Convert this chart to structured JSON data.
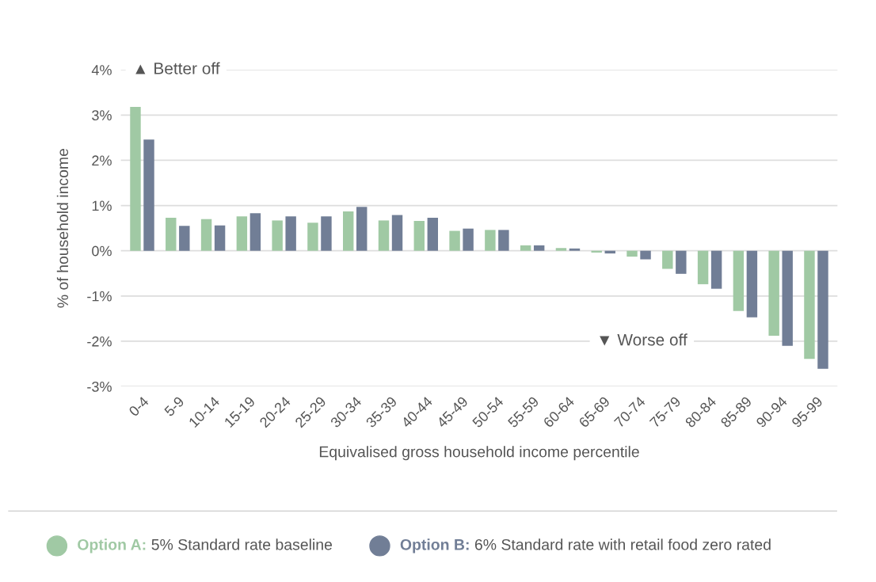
{
  "chart_data": {
    "type": "bar",
    "xlabel": "Equivalised gross household income percentile",
    "ylabel": "% of household income",
    "categories": [
      "0-4",
      "5-9",
      "10-14",
      "15-19",
      "20-24",
      "25-29",
      "30-34",
      "35-39",
      "40-44",
      "45-49",
      "50-54",
      "55-59",
      "60-64",
      "65-69",
      "70-74",
      "75-79",
      "80-84",
      "85-89",
      "90-94",
      "95-99"
    ],
    "series": [
      {
        "name": "Option A: 5% Standard rate baseline",
        "color": "#a0c9a4",
        "values": [
          3.18,
          0.73,
          0.7,
          0.76,
          0.67,
          0.62,
          0.87,
          0.67,
          0.66,
          0.44,
          0.46,
          0.12,
          0.06,
          -0.04,
          -0.13,
          -0.4,
          -0.74,
          -1.33,
          -1.88,
          -2.39
        ]
      },
      {
        "name": "Option B: 6% Standard rate with retail food zero rated",
        "color": "#717e96",
        "values": [
          2.46,
          0.55,
          0.56,
          0.83,
          0.76,
          0.76,
          0.97,
          0.79,
          0.73,
          0.49,
          0.46,
          0.12,
          0.05,
          -0.06,
          -0.19,
          -0.51,
          -0.84,
          -1.47,
          -2.1,
          -2.61
        ]
      }
    ],
    "ylim": [
      -3,
      4
    ],
    "yticks": [
      {
        "value": -3,
        "label": "-3%"
      },
      {
        "value": -2,
        "label": "-2%"
      },
      {
        "value": -1,
        "label": "-1%"
      },
      {
        "value": 0,
        "label": "0%"
      },
      {
        "value": 1,
        "label": "1%"
      },
      {
        "value": 2,
        "label": "2%"
      },
      {
        "value": 3,
        "label": "3%"
      },
      {
        "value": 4,
        "label": "4%"
      }
    ],
    "grid": "y",
    "legend": "bottom",
    "annotations": [
      "▲ Better off",
      "▼ Worse off"
    ]
  }
}
